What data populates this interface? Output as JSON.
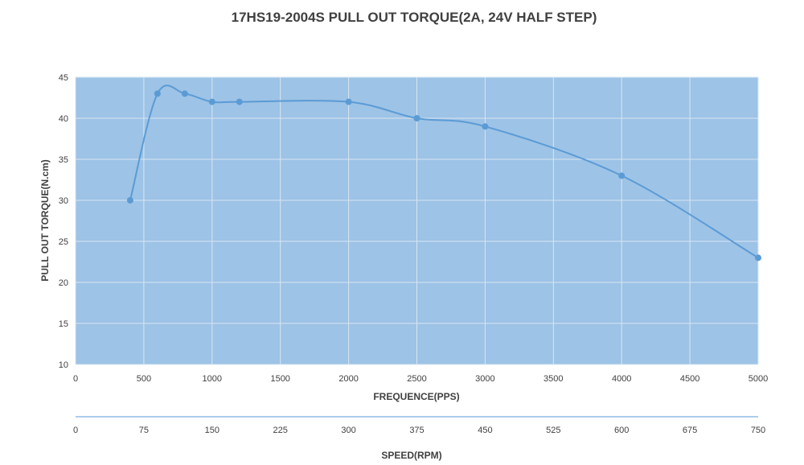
{
  "chart_data": {
    "type": "line",
    "title": "17HS19-2004S PULL OUT TORQUE(2A, 24V HALF STEP)",
    "xlabel": "FREQUENCE(PPS)",
    "ylabel": "PULL OUT TORQUE(N.cm)",
    "secondary_xlabel": "SPEED(RPM)",
    "xlim": [
      0,
      5000
    ],
    "ylim": [
      10,
      45
    ],
    "x_ticks": [
      "0",
      "500",
      "1000",
      "1500",
      "2000",
      "2500",
      "3000",
      "3500",
      "4000",
      "4500",
      "5000"
    ],
    "y_ticks": [
      "10",
      "15",
      "20",
      "25",
      "30",
      "35",
      "40",
      "45"
    ],
    "secondary_x_ticks": [
      "0",
      "75",
      "150",
      "225",
      "300",
      "375",
      "450",
      "525",
      "600",
      "675",
      "750"
    ],
    "grid": true,
    "legend": "none",
    "series": [
      {
        "x": [
          400,
          600,
          800,
          1000,
          1200,
          2000,
          2500,
          3000,
          4000,
          5000
        ],
        "values": [
          30,
          43,
          43,
          42,
          42,
          42,
          40,
          39,
          33,
          23
        ]
      }
    ],
    "colors": {
      "plot_background": "#9dc3e6",
      "line": "#5b9bd5",
      "marker": "#5b9bd5",
      "grid": "#d9e6f2",
      "secondary_axis_line": "#5b9bd5"
    }
  }
}
